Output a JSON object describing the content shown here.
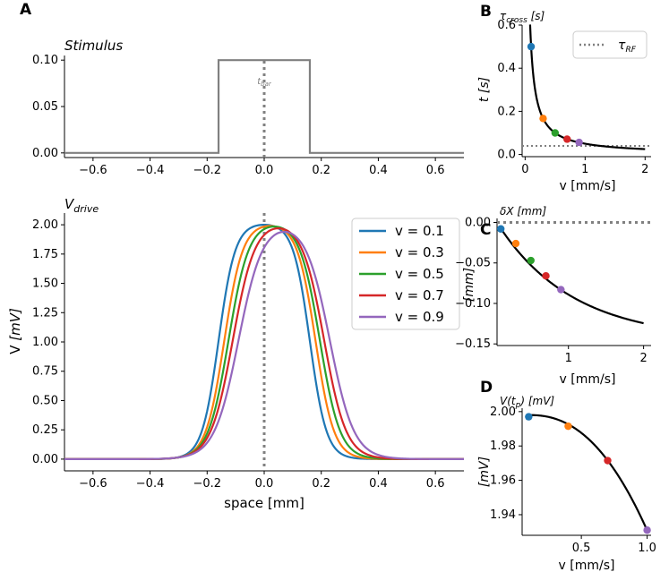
{
  "panel_letters": {
    "a": "A",
    "b": "B",
    "c": "C",
    "d": "D"
  },
  "colors": {
    "v01": "#1f77b4",
    "v03": "#ff7f0e",
    "v05": "#2ca02c",
    "v07": "#d62728",
    "v09": "#9467bd",
    "stimulus": "#808080",
    "curve": "#000000",
    "dotted": "#808080"
  },
  "chart_data": [
    {
      "id": "stimulus",
      "type": "line",
      "title": "Stimulus",
      "annotation": "t_bar",
      "xlim": [
        -0.7,
        0.7
      ],
      "ylim": [
        -0.005,
        0.105
      ],
      "xticks": [
        "−0.6",
        "−0.4",
        "−0.2",
        "0.0",
        "0.2",
        "0.4",
        "0.6"
      ],
      "yticks": [
        "0.00",
        "0.05",
        "0.10"
      ],
      "x": [
        -0.7,
        -0.16,
        -0.16,
        0.16,
        0.16,
        0.7
      ],
      "y": [
        0.0,
        0.0,
        0.1,
        0.1,
        0.0,
        0.0
      ],
      "vline_x": 0.0
    },
    {
      "id": "vdrive",
      "type": "line",
      "title": "V_drive",
      "xlabel": "space [mm]",
      "ylabel": "V [mV]",
      "xlim": [
        -0.7,
        0.7
      ],
      "ylim": [
        -0.1,
        2.1
      ],
      "xticks": [
        "−0.6",
        "−0.4",
        "−0.2",
        "0.0",
        "0.2",
        "0.4",
        "0.6"
      ],
      "yticks": [
        "0.00",
        "0.25",
        "0.50",
        "0.75",
        "1.00",
        "1.25",
        "1.50",
        "1.75",
        "2.00"
      ],
      "legend_position": "upper-right",
      "series": [
        {
          "name": "v = 0.1",
          "peak": 2.0,
          "shift": 0.0,
          "sigma": 0.065
        },
        {
          "name": "v = 0.3",
          "peak": 1.99,
          "shift": 0.02,
          "sigma": 0.072
        },
        {
          "name": "v = 0.5",
          "peak": 1.985,
          "shift": 0.035,
          "sigma": 0.079
        },
        {
          "name": "v = 0.7",
          "peak": 1.97,
          "shift": 0.05,
          "sigma": 0.086
        },
        {
          "name": "v = 0.9",
          "peak": 1.94,
          "shift": 0.07,
          "sigma": 0.094
        }
      ],
      "plateau_half_width": 0.16,
      "vline_x": 0.0
    },
    {
      "id": "tau-cross",
      "type": "line",
      "annotation": "τ_cross [s]",
      "xlabel": "v [mm/s]",
      "ylabel": "t [s]",
      "xlim": [
        -0.05,
        2.1
      ],
      "ylim": [
        -0.01,
        0.6
      ],
      "xticks": [
        "0",
        "1",
        "2"
      ],
      "yticks": [
        "0.0",
        "0.2",
        "0.4",
        "0.6"
      ],
      "legend": "τ_RF",
      "legend_position": "upper-right",
      "hline_y": 0.04,
      "points": [
        {
          "x": 0.1,
          "y": 0.5
        },
        {
          "x": 0.3,
          "y": 0.167
        },
        {
          "x": 0.5,
          "y": 0.1
        },
        {
          "x": 0.7,
          "y": 0.071
        },
        {
          "x": 0.9,
          "y": 0.056
        }
      ]
    },
    {
      "id": "delta-x",
      "type": "line",
      "annotation": "δX [mm]",
      "ylabel": "[mm]",
      "xlabel": "v [mm/s]",
      "xlim": [
        0.05,
        2.1
      ],
      "ylim": [
        -0.152,
        0.005
      ],
      "xticks": [
        "1",
        "2"
      ],
      "yticks": [
        "0.00",
        "−0.05",
        "−0.10",
        "−0.15"
      ],
      "hline_y": 0.0,
      "points": [
        {
          "x": 0.1,
          "y": -0.008
        },
        {
          "x": 0.3,
          "y": -0.026
        },
        {
          "x": 0.5,
          "y": -0.047
        },
        {
          "x": 0.7,
          "y": -0.066
        },
        {
          "x": 0.9,
          "y": -0.083
        }
      ]
    },
    {
      "id": "v-tp",
      "type": "line",
      "annotation": "V(t_p) [mV]",
      "ylabel": "[mV]",
      "xlabel": "v [mm/s]",
      "xlim": [
        0.05,
        1.03
      ],
      "ylim": [
        1.928,
        2.002
      ],
      "xticks": [
        "0.5",
        "1.0"
      ],
      "yticks": [
        "2.00",
        "1.98",
        "1.96",
        "1.94"
      ],
      "points": [
        {
          "x": 0.1,
          "y": 1.997
        },
        {
          "x": 0.4,
          "y": 1.9915
        },
        {
          "x": 0.7,
          "y": 1.9715
        },
        {
          "x": 1.0,
          "y": 1.931
        }
      ]
    }
  ]
}
